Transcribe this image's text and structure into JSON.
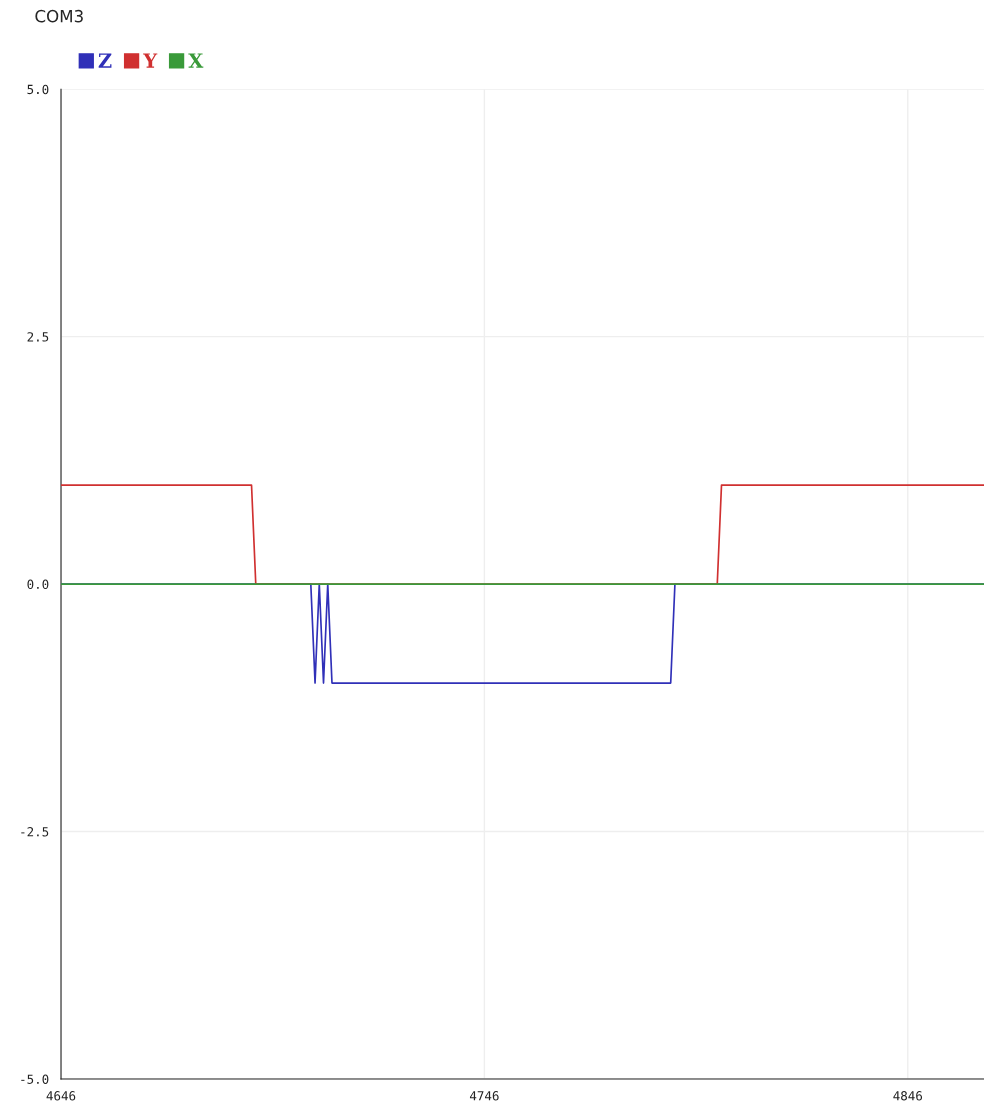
{
  "chart_data": {
    "type": "line",
    "title": "COM3",
    "xlim": [
      4646,
      4864
    ],
    "xticks": [
      4646,
      4746,
      4846
    ],
    "ylim": [
      -5,
      5
    ],
    "yticks": [
      {
        "value": -5,
        "label": "-5.0"
      },
      {
        "value": -2.5,
        "label": "-2.5"
      },
      {
        "value": 0,
        "label": "0.0"
      },
      {
        "value": 2.5,
        "label": "2.5"
      },
      {
        "value": 5,
        "label": "5.0"
      }
    ],
    "grid": true,
    "legend": "top left",
    "marker": "none",
    "line_style": "solid",
    "series": [
      {
        "name": "Z",
        "color": "#3030b8",
        "x": [
          4646,
          4705,
          4706,
          4707,
          4708,
          4709,
          4710,
          4790,
          4791,
          4864
        ],
        "values": [
          0,
          0,
          -1,
          0,
          -1,
          0,
          -1,
          -1,
          0,
          0
        ]
      },
      {
        "name": "Y",
        "color": "#d03030",
        "x": [
          4646,
          4691,
          4692,
          4801,
          4802,
          4864
        ],
        "values": [
          1,
          1,
          0,
          0,
          1,
          1
        ]
      },
      {
        "name": "X",
        "color": "#3a9a3a",
        "x": [
          4646,
          4864
        ],
        "values": [
          0,
          0
        ]
      }
    ]
  }
}
